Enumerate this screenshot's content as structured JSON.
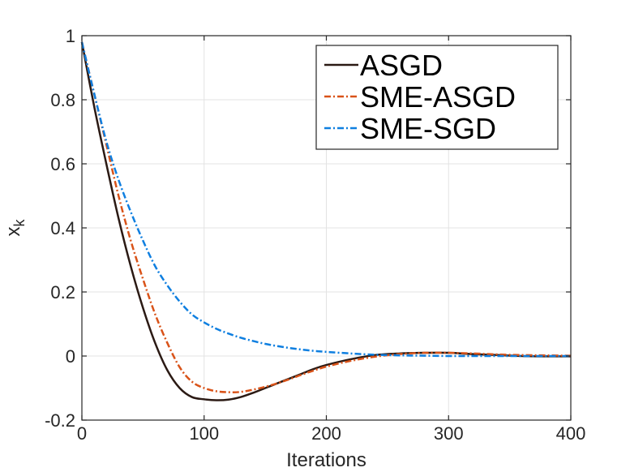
{
  "chart_data": {
    "type": "line",
    "title": "",
    "xlabel": "Iterations",
    "ylabel": "x",
    "ylabel_subscript": "k",
    "xlim": [
      0,
      400
    ],
    "ylim": [
      -0.2,
      1
    ],
    "xticks": [
      0,
      100,
      200,
      300,
      400
    ],
    "yticks": [
      -0.2,
      0,
      0.2,
      0.4,
      0.6,
      0.8,
      1
    ],
    "xtick_labels": [
      "0",
      "100",
      "200",
      "300",
      "400"
    ],
    "ytick_labels": [
      "-0.2",
      "0",
      "0.2",
      "0.4",
      "0.6",
      "0.8",
      "1"
    ],
    "grid": true,
    "legend_position": "top-right",
    "series": [
      {
        "name": "ASGD",
        "color": "#2b1a14",
        "style": "solid",
        "x": [
          0,
          10,
          20,
          30,
          40,
          50,
          60,
          70,
          80,
          90,
          100,
          110,
          120,
          130,
          140,
          150,
          160,
          170,
          180,
          190,
          200,
          220,
          240,
          260,
          280,
          300,
          320,
          340,
          360,
          380,
          400
        ],
        "y": [
          0.98,
          0.78,
          0.6,
          0.43,
          0.28,
          0.15,
          0.04,
          -0.045,
          -0.1,
          -0.128,
          -0.135,
          -0.138,
          -0.136,
          -0.128,
          -0.115,
          -0.1,
          -0.085,
          -0.07,
          -0.055,
          -0.04,
          -0.028,
          -0.01,
          0.003,
          0.008,
          0.01,
          0.01,
          0.006,
          0.003,
          0.0,
          -0.001,
          -0.001
        ]
      },
      {
        "name": "SME-ASGD",
        "color": "#d95319",
        "style": "dashdot",
        "x": [
          0,
          10,
          20,
          30,
          40,
          50,
          60,
          70,
          80,
          90,
          100,
          110,
          120,
          130,
          140,
          150,
          160,
          170,
          180,
          190,
          200,
          220,
          240,
          260,
          280,
          300,
          320,
          340,
          360,
          380,
          400
        ],
        "y": [
          0.98,
          0.82,
          0.66,
          0.5,
          0.36,
          0.24,
          0.13,
          0.04,
          -0.035,
          -0.08,
          -0.1,
          -0.11,
          -0.113,
          -0.112,
          -0.105,
          -0.096,
          -0.085,
          -0.072,
          -0.058,
          -0.045,
          -0.033,
          -0.015,
          -0.002,
          0.006,
          0.01,
          0.01,
          0.008,
          0.005,
          0.003,
          0.002,
          0.001
        ]
      },
      {
        "name": "SME-SGD",
        "color": "#0f7fe0",
        "style": "dashdot",
        "x": [
          0,
          10,
          20,
          30,
          40,
          50,
          60,
          70,
          80,
          90,
          100,
          110,
          120,
          130,
          140,
          150,
          160,
          170,
          180,
          190,
          200,
          220,
          240,
          260,
          280,
          300,
          320,
          340,
          360,
          380,
          400
        ],
        "y": [
          0.98,
          0.82,
          0.67,
          0.55,
          0.45,
          0.36,
          0.28,
          0.22,
          0.17,
          0.13,
          0.105,
          0.085,
          0.07,
          0.057,
          0.047,
          0.038,
          0.031,
          0.025,
          0.02,
          0.016,
          0.013,
          0.008,
          0.004,
          0.002,
          0.001,
          0.0,
          0.0,
          0.0,
          0.0,
          0.0,
          0.0
        ]
      }
    ]
  }
}
